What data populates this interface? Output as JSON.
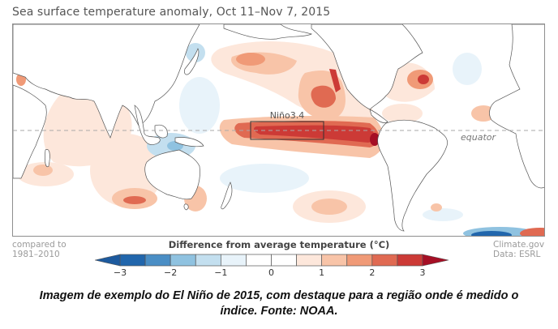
{
  "title": "Sea surface temperature anomaly, Oct 11–Nov 7, 2015",
  "map": {
    "box_label": "Niño3.4",
    "equator_label": "equator"
  },
  "footer": {
    "compared_line1": "compared to",
    "compared_line2": "1981–2010",
    "credit_line1": "Climate.gov",
    "credit_line2": "Data: ESRL"
  },
  "legend": {
    "title": "Difference from average temperature (°C)",
    "min": -3,
    "max": 3,
    "step": 0.5,
    "ticks": [
      "−3",
      "−2",
      "−1",
      "0",
      "1",
      "2",
      "3"
    ],
    "colors": [
      "#2166ac",
      "#4a8ec5",
      "#8fc2e0",
      "#c3dfef",
      "#e8f3fa",
      "#ffffff",
      "#ffffff",
      "#fde7db",
      "#f8c4a8",
      "#f09a77",
      "#e06a52",
      "#cc3a36"
    ],
    "under_color": "#1d5a9e",
    "over_color": "#a50f25"
  },
  "caption": {
    "line1": "Imagem de exemplo do El Niño de 2015, com destaque para a região onde é medido o",
    "line2": "índice. Fonte: NOAA."
  }
}
